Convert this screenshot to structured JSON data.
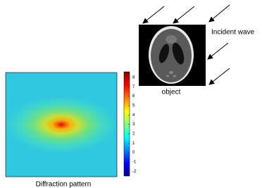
{
  "labels": {
    "incident_wave": "Incident wave",
    "object": "object",
    "diffraction": "Diffraction pattern"
  },
  "colorbar": {
    "lim": [
      -2.5,
      8.6
    ],
    "ticks": [
      8,
      7,
      6,
      5,
      4,
      3,
      2,
      1,
      0,
      -1,
      -2
    ]
  }
}
